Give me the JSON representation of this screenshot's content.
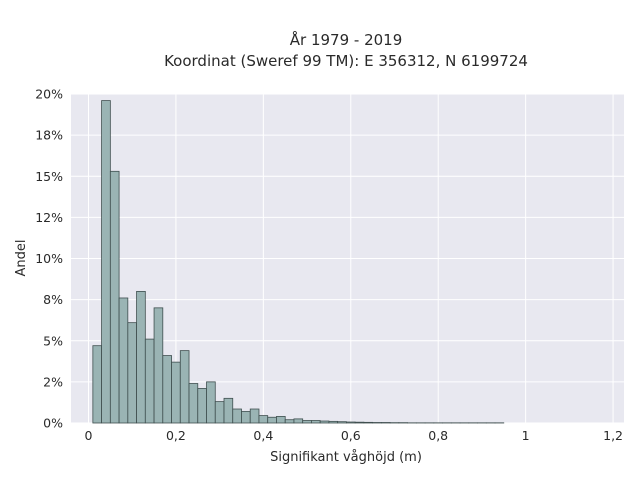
{
  "chart_data": {
    "type": "bar",
    "title_line1": "År 1979 - 2019",
    "title_line2": "Koordinat (Sweref 99 TM): E 356312, N 6199724",
    "xlabel": "Signifikant våghöjd (m)",
    "ylabel": "Andel",
    "xlim": [
      -0.04,
      1.225
    ],
    "ylim": [
      0,
      0.2
    ],
    "x_ticks": [
      0,
      0.2,
      0.4,
      0.6,
      0.8,
      1.0,
      1.2
    ],
    "x_tick_labels": [
      "0",
      "0,2",
      "0,4",
      "0,6",
      "0,8",
      "1",
      "1,2"
    ],
    "y_ticks": [
      0,
      0.025,
      0.05,
      0.075,
      0.1,
      0.125,
      0.15,
      0.175,
      0.2
    ],
    "y_tick_labels": [
      "0%",
      "2%",
      "5%",
      "8%",
      "10%",
      "12%",
      "15%",
      "18%",
      "20%"
    ],
    "bin_width": 0.02,
    "bin_start": 0.01,
    "values": [
      0.047,
      0.196,
      0.153,
      0.076,
      0.061,
      0.08,
      0.051,
      0.07,
      0.041,
      0.037,
      0.044,
      0.024,
      0.021,
      0.025,
      0.013,
      0.015,
      0.0085,
      0.007,
      0.0085,
      0.0045,
      0.0035,
      0.004,
      0.002,
      0.0025,
      0.0015,
      0.0015,
      0.0012,
      0.001,
      0.0008,
      0.0006,
      0.0005,
      0.0004,
      0.0003,
      0.0003,
      0.0002,
      0.0002,
      0.0001,
      0.0001,
      0.0001,
      0.0001,
      0.0001,
      0.0001,
      0.0001,
      0.0001,
      0.0001,
      0.0001,
      0.0001
    ],
    "grid": true,
    "bar_color": "#9ab4b4",
    "bar_edge_color": "#3f4f4f",
    "background_color": "#e8e8f0",
    "grid_color": "#ffffff"
  }
}
